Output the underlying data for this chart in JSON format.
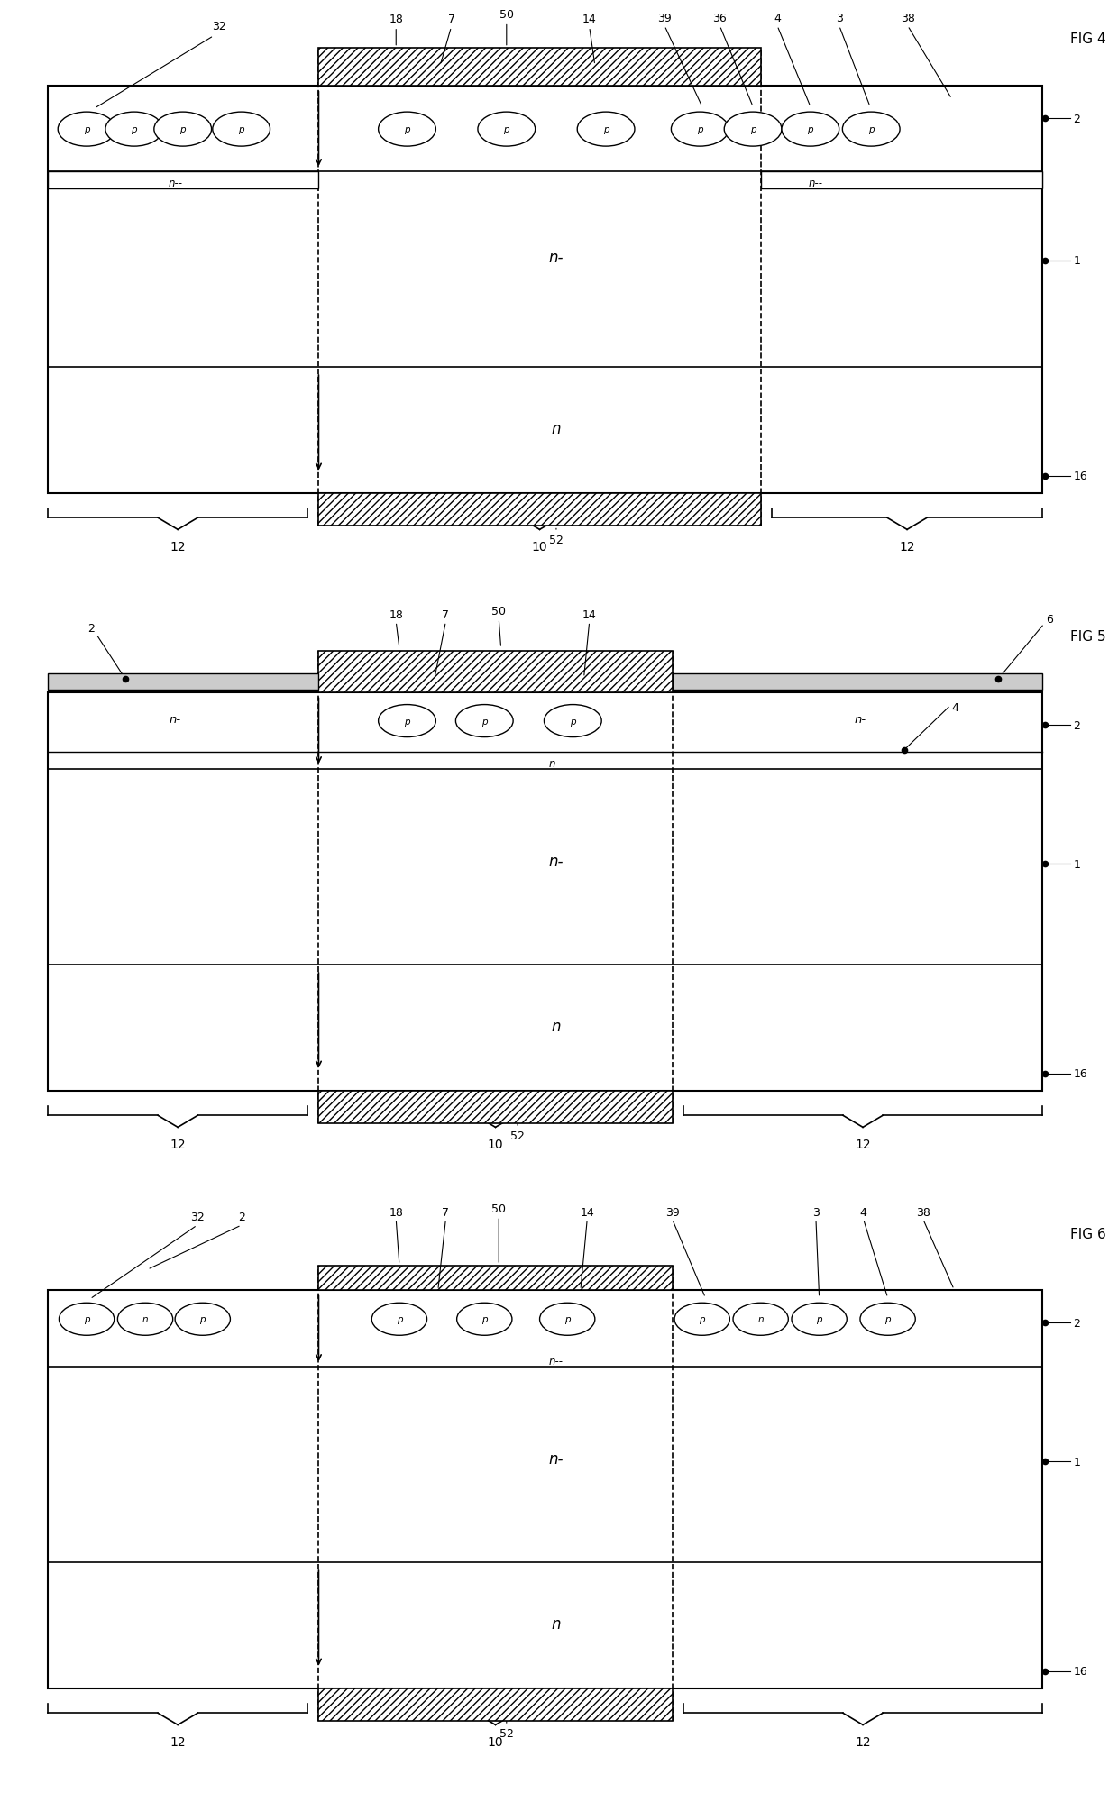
{
  "fig_labels": [
    "FIG 4",
    "FIG 5",
    "FIG 6"
  ],
  "bg_color": "#ffffff",
  "line_color": "#000000"
}
